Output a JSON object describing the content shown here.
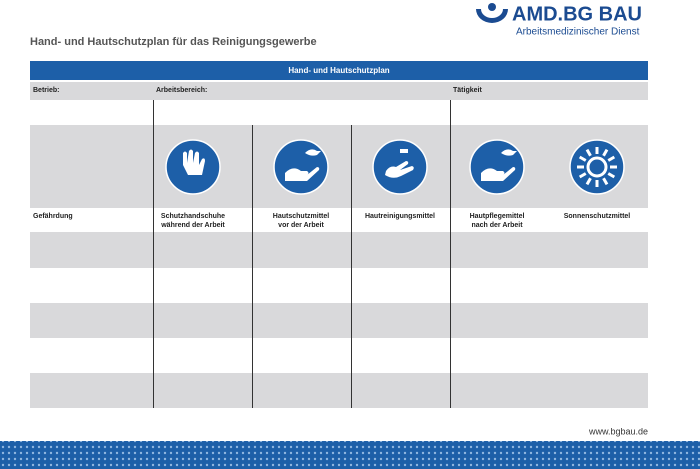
{
  "logo": {
    "name": "AMD.BG BAU",
    "subtitle": "Arbeitsmedizinischer Dienst"
  },
  "title": "Hand- und Hautschutzplan für das Reinigungsgewerbe",
  "table": {
    "header": "Hand- und Hautschutzplan",
    "fields": [
      "Betrieb:",
      "Arbeitsbereich:",
      "Tätigkeit"
    ],
    "row_label": "Gefährdung",
    "columns": [
      [
        "Schutzhandschuhe",
        "während der Arbeit"
      ],
      [
        "Hautschutzmittel",
        "vor der Arbeit"
      ],
      [
        "Hautreinigungsmittel"
      ],
      [
        "Hautpflegemittel",
        "nach der Arbeit"
      ],
      [
        "Sonnenschutzmittel"
      ]
    ]
  },
  "footer": {
    "url": "www.bgbau.de"
  }
}
